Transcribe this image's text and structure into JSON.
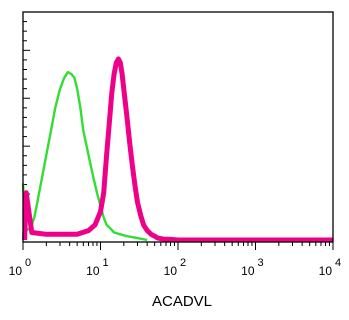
{
  "chart_data": {
    "type": "line",
    "title": "",
    "xlabel": "ACADVL",
    "ylabel": "",
    "x_scale": "log",
    "xlim": [
      1,
      10000
    ],
    "ylim": [
      0,
      1
    ],
    "grid": false,
    "x_ticks": [
      {
        "base": "10",
        "exp": "0"
      },
      {
        "base": "10",
        "exp": "1"
      },
      {
        "base": "10",
        "exp": "2"
      },
      {
        "base": "10",
        "exp": "3"
      },
      {
        "base": "10",
        "exp": "4"
      }
    ],
    "series": [
      {
        "color": "#33dd33",
        "x": [
          1.0,
          1.05,
          1.1,
          1.2,
          1.3,
          1.4,
          1.5,
          1.7,
          2.0,
          2.3,
          2.6,
          3.0,
          3.4,
          3.8,
          4.2,
          4.6,
          5.0,
          5.5,
          6.0,
          7.0,
          8.0,
          9.0,
          10.0,
          11.0,
          12.0,
          13.5,
          15.0,
          18.0,
          22.0,
          30.0,
          40.0
        ],
        "y": [
          0.3,
          0.15,
          0.05,
          0.06,
          0.08,
          0.12,
          0.18,
          0.3,
          0.45,
          0.58,
          0.7,
          0.8,
          0.86,
          0.89,
          0.88,
          0.86,
          0.8,
          0.7,
          0.58,
          0.45,
          0.34,
          0.25,
          0.18,
          0.12,
          0.08,
          0.06,
          0.04,
          0.03,
          0.02,
          0.01,
          0.0
        ]
      },
      {
        "color": "#ee0088",
        "x": [
          1.05,
          1.1,
          1.3,
          2.0,
          3.0,
          5.0,
          7.0,
          8.5,
          10.0,
          11.0,
          12.0,
          13.0,
          14.0,
          15.0,
          16.0,
          17.0,
          18.0,
          19.0,
          20.0,
          22.0,
          24.0,
          26.0,
          28.0,
          30.0,
          33.0,
          36.0,
          40.0,
          45.0,
          50.0,
          55.0,
          65.0,
          80.0,
          100.0,
          1000.0,
          10000.0
        ],
        "y": [
          0.0,
          0.25,
          0.04,
          0.03,
          0.03,
          0.03,
          0.05,
          0.08,
          0.15,
          0.25,
          0.45,
          0.62,
          0.78,
          0.88,
          0.94,
          0.96,
          0.94,
          0.88,
          0.8,
          0.65,
          0.5,
          0.38,
          0.28,
          0.2,
          0.13,
          0.08,
          0.05,
          0.03,
          0.02,
          0.01,
          0.005,
          0.003,
          0.0,
          0.0,
          0.0
        ]
      }
    ]
  }
}
